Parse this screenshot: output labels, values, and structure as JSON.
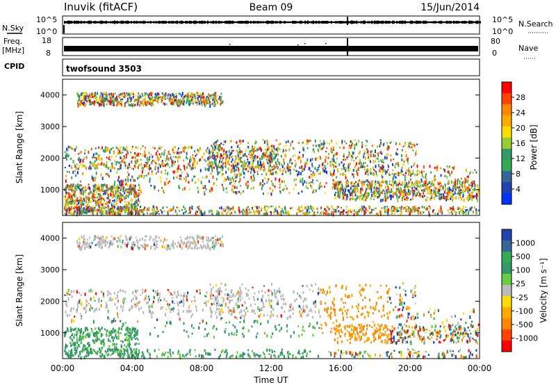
{
  "header": {
    "station": "Inuvik (fitACF)",
    "beam": "Beam 09",
    "date": "15/Jun/2014"
  },
  "top_panel": {
    "left_label": "N.Sky",
    "right_label": "N.Search",
    "left_ticks": [
      "10^5",
      "10^0"
    ],
    "right_ticks": [
      "10^5",
      "10^0"
    ]
  },
  "freq_panel": {
    "left_label_line1": "Freq.",
    "left_label_line2": "[MHz]",
    "right_label": "Nave",
    "left_ticks": [
      "18",
      "8"
    ],
    "right_ticks": [
      "80",
      "0"
    ]
  },
  "cpid_panel": {
    "label": "CPID",
    "program": "twofsound 3503"
  },
  "power_panel": {
    "ylabel": "Slant Range [km]",
    "yticks": [
      "1000",
      "2000",
      "3000",
      "4000"
    ],
    "colorbar_label": "Power [dB]",
    "colorbar_ticks": [
      "28",
      "24",
      "20",
      "16",
      "12",
      "8",
      "4"
    ],
    "colors": [
      "#ff0000",
      "#ff4400",
      "#ff8800",
      "#ffaa00",
      "#ffdd00",
      "#99cc33",
      "#339966",
      "#33aa55",
      "#336699",
      "#2244aa",
      "#0033ff"
    ]
  },
  "velocity_panel": {
    "ylabel": "Slant Range [km]",
    "yticks": [
      "1000",
      "2000",
      "3000",
      "4000"
    ],
    "colorbar_label": "Velocity [m s⁻¹]",
    "colorbar_ticks": [
      "1000",
      "500",
      "100",
      "25",
      "-25",
      "-100",
      "-500",
      "-1000"
    ],
    "colors": [
      "#2244aa",
      "#336699",
      "#33aa55",
      "#339966",
      "#66cc44",
      "#bbbbbb",
      "#ffdd00",
      "#ffaa00",
      "#ff8800",
      "#ff4400",
      "#ff0000"
    ]
  },
  "xaxis": {
    "label": "Time UT",
    "ticks": [
      "00:00",
      "04:00",
      "08:00",
      "12:00",
      "16:00",
      "20:00",
      "00:00"
    ]
  },
  "chart_data": {
    "type": "heatmap",
    "title": "Inuvik (fitACF)",
    "x_range_hours": [
      0,
      24
    ],
    "y_range_km": [
      180,
      4500
    ],
    "power_scale_db": [
      0,
      32
    ],
    "velocity_scale_ms": [
      -1200,
      1200
    ]
  }
}
